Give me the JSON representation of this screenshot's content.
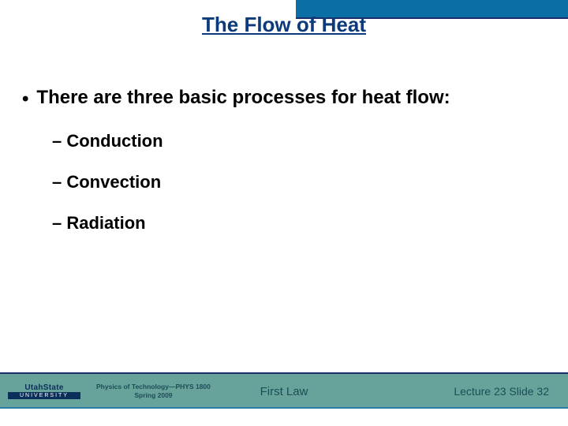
{
  "colors": {
    "title": "#0c3a7a",
    "header_blue": "#0b6fa6",
    "header_rule": "#1b2e6b",
    "main_text": "#000000",
    "band_bg": "#67a39b",
    "band_border_top": "#1b2e6b",
    "band_bottom_line": "#2a7aa8",
    "footer_text": "#1d4d57",
    "logo_text": "#0b2f5b"
  },
  "title": "The Flow of Heat",
  "main_bullet": "There are three basic processes for heat flow:",
  "sub_items": [
    "Conduction",
    "Convection",
    "Radiation"
  ],
  "logo": {
    "top": "UtahState",
    "bottom": "UNIVERSITY"
  },
  "course": {
    "line1": "Physics of Technology—PHYS 1800",
    "line2": "Spring 2009"
  },
  "footer_center": "First Law",
  "footer_right": "Lecture  23   Slide  32"
}
